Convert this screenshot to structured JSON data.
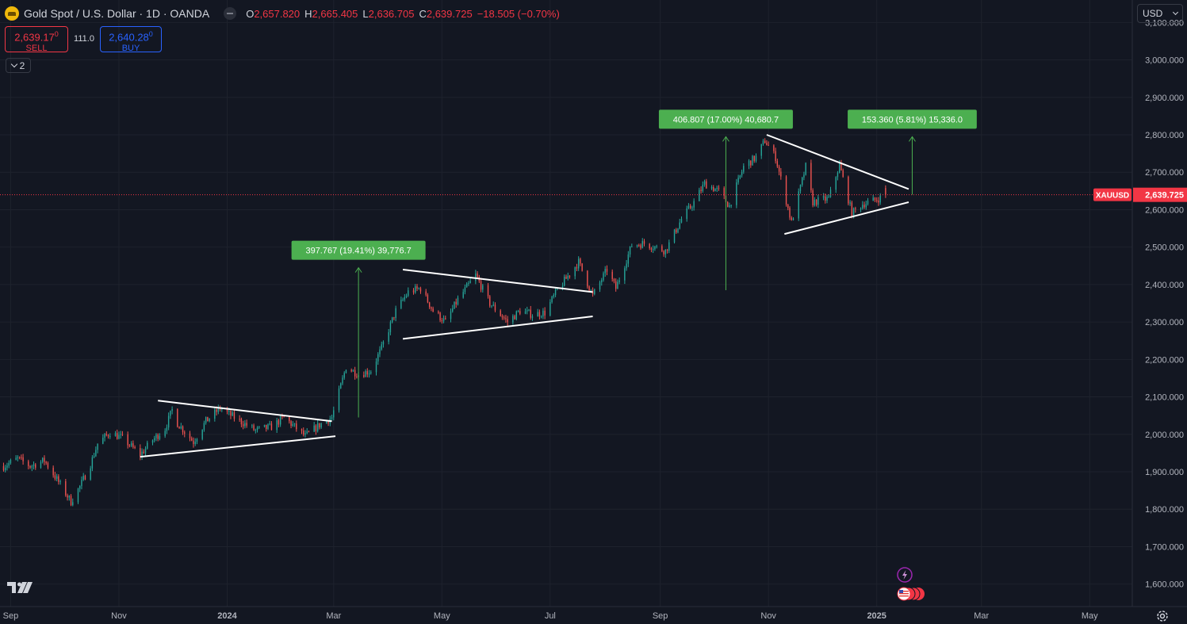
{
  "header": {
    "title": "Gold Spot / U.S. Dollar · 1D · OANDA",
    "ohlc": [
      {
        "k": "O",
        "v": "2,657.820"
      },
      {
        "k": "H",
        "v": "2,665.405"
      },
      {
        "k": "L",
        "v": "2,636.705"
      },
      {
        "k": "C",
        "v": "2,639.725"
      }
    ],
    "change": "−18.505 (−0.70%)"
  },
  "trade": {
    "sell_price": "2,639.17",
    "sell_sup": "0",
    "sell_label": "SELL",
    "spread": "111.0",
    "buy_price": "2,640.28",
    "buy_sup": "0",
    "buy_label": "BUY"
  },
  "indicators_count": "2",
  "currency": "USD",
  "colors": {
    "background": "#131722",
    "up": "#26a69a",
    "down": "#ef5350",
    "grid": "#1e222d",
    "label_green": "#4caf50",
    "price_tag": "#f23645"
  },
  "icons": [
    "tradingview-logo-icon",
    "settings-gear-icon",
    "lightning-icon",
    "us-flag-icon"
  ],
  "chart_data": {
    "type": "candlestick",
    "title": "Gold Spot / U.S. Dollar · 1D · OANDA",
    "symbol": "XAUUSD",
    "last_price": 2639.725,
    "last_price_label": "2,639.725",
    "y_ticks": [
      {
        "v": 3100,
        "label": "3,100.000"
      },
      {
        "v": 3000,
        "label": "3,000.000"
      },
      {
        "v": 2900,
        "label": "2,900.000"
      },
      {
        "v": 2800,
        "label": "2,800.000"
      },
      {
        "v": 2700,
        "label": "2,700.000"
      },
      {
        "v": 2600,
        "label": "2,600.000"
      },
      {
        "v": 2500,
        "label": "2,500.000"
      },
      {
        "v": 2400,
        "label": "2,400.000"
      },
      {
        "v": 2300,
        "label": "2,300.000"
      },
      {
        "v": 2200,
        "label": "2,200.000"
      },
      {
        "v": 2100,
        "label": "2,100.000"
      },
      {
        "v": 2000,
        "label": "2,000.000"
      },
      {
        "v": 1900,
        "label": "1,900.000"
      },
      {
        "v": 1800,
        "label": "1,800.000"
      },
      {
        "v": 1700,
        "label": "1,700.000"
      },
      {
        "v": 1600,
        "label": "1,600.000"
      }
    ],
    "x_ticks": [
      {
        "date": "2023-09-01",
        "label": "Sep",
        "bold": false
      },
      {
        "date": "2023-11-01",
        "label": "Nov",
        "bold": false
      },
      {
        "date": "2024-01-01",
        "label": "2024",
        "bold": true
      },
      {
        "date": "2024-03-01",
        "label": "Mar",
        "bold": false
      },
      {
        "date": "2024-05-01",
        "label": "May",
        "bold": false
      },
      {
        "date": "2024-07-01",
        "label": "Jul",
        "bold": false
      },
      {
        "date": "2024-09-01",
        "label": "Sep",
        "bold": false
      },
      {
        "date": "2024-11-01",
        "label": "Nov",
        "bold": false
      },
      {
        "date": "2025-01-01",
        "label": "2025",
        "bold": true
      },
      {
        "date": "2025-03-01",
        "label": "Mar",
        "bold": false
      },
      {
        "date": "2025-05-01",
        "label": "May",
        "bold": false
      }
    ],
    "x_range": [
      "2023-08-26",
      "2025-05-25"
    ],
    "y_range": [
      1540,
      3160
    ],
    "price_path": [
      [
        "2023-08-28",
        1915
      ],
      [
        "2023-09-05",
        1935
      ],
      [
        "2023-09-12",
        1915
      ],
      [
        "2023-09-20",
        1930
      ],
      [
        "2023-09-27",
        1880
      ],
      [
        "2023-10-05",
        1820
      ],
      [
        "2023-10-10",
        1860
      ],
      [
        "2023-10-16",
        1920
      ],
      [
        "2023-10-20",
        1975
      ],
      [
        "2023-10-27",
        2005
      ],
      [
        "2023-11-03",
        1990
      ],
      [
        "2023-11-13",
        1945
      ],
      [
        "2023-11-20",
        1985
      ],
      [
        "2023-11-27",
        2015
      ],
      [
        "2023-12-01",
        2065
      ],
      [
        "2023-12-04",
        2030
      ],
      [
        "2023-12-13",
        1980
      ],
      [
        "2023-12-20",
        2035
      ],
      [
        "2023-12-28",
        2070
      ],
      [
        "2024-01-05",
        2045
      ],
      [
        "2024-01-17",
        2010
      ],
      [
        "2024-01-26",
        2020
      ],
      [
        "2024-02-02",
        2045
      ],
      [
        "2024-02-14",
        1995
      ],
      [
        "2024-02-22",
        2025
      ],
      [
        "2024-02-29",
        2045
      ],
      [
        "2024-03-08",
        2180
      ],
      [
        "2024-03-15",
        2160
      ],
      [
        "2024-03-22",
        2170
      ],
      [
        "2024-03-28",
        2230
      ],
      [
        "2024-04-05",
        2330
      ],
      [
        "2024-04-12",
        2380
      ],
      [
        "2024-04-19",
        2390
      ],
      [
        "2024-04-26",
        2330
      ],
      [
        "2024-05-03",
        2300
      ],
      [
        "2024-05-10",
        2360
      ],
      [
        "2024-05-20",
        2425
      ],
      [
        "2024-05-28",
        2350
      ],
      [
        "2024-06-07",
        2300
      ],
      [
        "2024-06-14",
        2330
      ],
      [
        "2024-06-21",
        2320
      ],
      [
        "2024-06-28",
        2325
      ],
      [
        "2024-07-05",
        2385
      ],
      [
        "2024-07-17",
        2460
      ],
      [
        "2024-07-25",
        2370
      ],
      [
        "2024-08-02",
        2440
      ],
      [
        "2024-08-07",
        2390
      ],
      [
        "2024-08-16",
        2505
      ],
      [
        "2024-08-23",
        2510
      ],
      [
        "2024-09-04",
        2490
      ],
      [
        "2024-09-13",
        2575
      ],
      [
        "2024-09-20",
        2620
      ],
      [
        "2024-09-26",
        2670
      ],
      [
        "2024-10-04",
        2650
      ],
      [
        "2024-10-10",
        2610
      ],
      [
        "2024-10-18",
        2715
      ],
      [
        "2024-10-25",
        2740
      ],
      [
        "2024-10-30",
        2785
      ],
      [
        "2024-11-05",
        2740
      ],
      [
        "2024-11-14",
        2565
      ],
      [
        "2024-11-22",
        2715
      ],
      [
        "2024-11-26",
        2620
      ],
      [
        "2024-12-05",
        2630
      ],
      [
        "2024-12-11",
        2720
      ],
      [
        "2024-12-18",
        2590
      ],
      [
        "2024-12-24",
        2615
      ],
      [
        "2024-12-31",
        2625
      ],
      [
        "2025-01-06",
        2639.725
      ]
    ],
    "trendlines": [
      {
        "from": [
          "2023-11-23",
          2090
        ],
        "to": [
          "2024-02-29",
          2035
        ]
      },
      {
        "from": [
          "2023-11-13",
          1940
        ],
        "to": [
          "2024-03-02",
          1995
        ]
      },
      {
        "from": [
          "2024-04-09",
          2440
        ],
        "to": [
          "2024-07-25",
          2380
        ]
      },
      {
        "from": [
          "2024-04-09",
          2255
        ],
        "to": [
          "2024-07-25",
          2315
        ]
      },
      {
        "from": [
          "2024-10-31",
          2800
        ],
        "to": [
          "2025-01-19",
          2655
        ]
      },
      {
        "from": [
          "2024-11-10",
          2535
        ],
        "to": [
          "2025-01-19",
          2620
        ]
      }
    ],
    "measurements": [
      {
        "x": "2024-03-15",
        "from": 2045,
        "to": 2445,
        "label": "397.767 (19.41%) 39,776.7"
      },
      {
        "x": "2024-10-08",
        "from": 2385,
        "to": 2795,
        "label": "406.807 (17.00%) 40,680.7"
      },
      {
        "x": "2025-01-21",
        "from": 2640,
        "to": 2795,
        "label": "153.360 (5.81%) 15,336.0"
      }
    ]
  }
}
